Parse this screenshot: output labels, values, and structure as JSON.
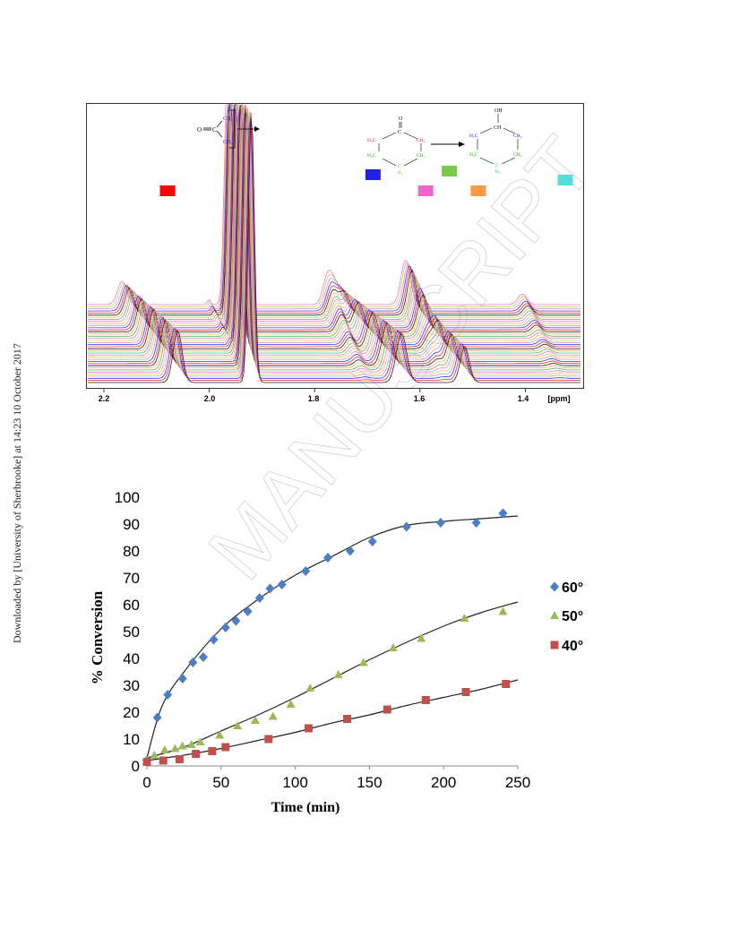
{
  "side_note": "Downloaded by [University of Sherbrooke] at 14:23 10 October 2017",
  "watermark": "MANUSCRIPT",
  "nmr": {
    "x_ticks": [
      "2.2",
      "2.0",
      "1.8",
      "1.6",
      "1.4"
    ],
    "x_unit": "[ppm]",
    "markers": [
      {
        "color": "#ff0000"
      },
      {
        "color": "#2222dd"
      },
      {
        "color": "#ee66cc"
      },
      {
        "color": "#77cc44"
      },
      {
        "color": "#ff9944"
      },
      {
        "color": "#55dddd"
      }
    ],
    "spectrum_colors": [
      "#222222",
      "#ff2222",
      "#3333ff",
      "#cc99cc",
      "#ddcc55",
      "#ee77dd",
      "#55bb55",
      "#ffaa66"
    ],
    "reactant_atoms": {
      "o": "O",
      "c": "C",
      "ch3_top": "CH₃",
      "ch3_bottom": "CH₃"
    },
    "ring_atoms": {
      "o": "O",
      "oh": "OH",
      "c": "C",
      "ch": "CH",
      "h2c": "H₂C",
      "ch2": "CH₂",
      "h2": "H₂"
    }
  },
  "chart_data": {
    "type": "scatter",
    "title": "",
    "xlabel": "Time (min)",
    "ylabel": "% Conversion",
    "xlim": [
      0,
      250
    ],
    "ylim": [
      0,
      100
    ],
    "x_ticks": [
      0,
      50,
      100,
      150,
      200,
      250
    ],
    "y_ticks": [
      0,
      10,
      20,
      30,
      40,
      50,
      60,
      70,
      80,
      90,
      100
    ],
    "legend_position": "right",
    "series": [
      {
        "name": "60°",
        "marker": "diamond",
        "color": "#4a7fc1",
        "x": [
          0,
          7,
          14,
          24,
          31,
          38,
          45,
          53,
          60,
          68,
          76,
          83,
          91,
          107,
          122,
          137,
          152,
          175,
          198,
          222,
          240
        ],
        "y": [
          2,
          18,
          26.5,
          32.5,
          38.5,
          40.5,
          47,
          51.5,
          54,
          57.5,
          62.5,
          66,
          67.5,
          72.5,
          77.5,
          80,
          83.5,
          89,
          90.5,
          90.5,
          94
        ],
        "fit": [
          [
            0,
            3
          ],
          [
            10,
            22
          ],
          [
            25,
            35
          ],
          [
            50,
            51
          ],
          [
            75,
            62
          ],
          [
            100,
            71
          ],
          [
            125,
            78
          ],
          [
            150,
            85
          ],
          [
            175,
            89.5
          ],
          [
            200,
            91
          ],
          [
            225,
            92
          ],
          [
            250,
            93
          ]
        ]
      },
      {
        "name": "50°",
        "marker": "triangle",
        "color": "#9bbb59",
        "x": [
          0,
          5,
          12,
          19,
          24,
          30,
          36,
          49,
          61,
          73,
          85,
          97,
          110,
          129,
          146,
          166,
          185,
          214,
          240
        ],
        "y": [
          2,
          4,
          6,
          6.5,
          7.5,
          8,
          9,
          11.5,
          15,
          17,
          18.5,
          23,
          29,
          34,
          38.5,
          44,
          47.5,
          55,
          57.5
        ],
        "fit": [
          [
            0,
            3
          ],
          [
            25,
            7
          ],
          [
            50,
            13
          ],
          [
            75,
            19
          ],
          [
            100,
            25.5
          ],
          [
            125,
            32.5
          ],
          [
            150,
            39.5
          ],
          [
            175,
            46
          ],
          [
            200,
            52
          ],
          [
            225,
            57
          ],
          [
            250,
            61
          ]
        ]
      },
      {
        "name": "40°",
        "marker": "square",
        "color": "#c0504d",
        "x": [
          0,
          11,
          22,
          33,
          44,
          53,
          82,
          109,
          135,
          162,
          188,
          215,
          242
        ],
        "y": [
          1.5,
          2,
          2.5,
          4.5,
          5.5,
          7,
          10,
          14,
          17.5,
          21,
          24.5,
          27.5,
          30.5
        ],
        "fit": [
          [
            0,
            2
          ],
          [
            25,
            4
          ],
          [
            50,
            6.5
          ],
          [
            75,
            9.5
          ],
          [
            100,
            12.5
          ],
          [
            125,
            16
          ],
          [
            150,
            19
          ],
          [
            175,
            22.5
          ],
          [
            200,
            25.5
          ],
          [
            225,
            28.5
          ],
          [
            250,
            32
          ]
        ]
      }
    ]
  }
}
